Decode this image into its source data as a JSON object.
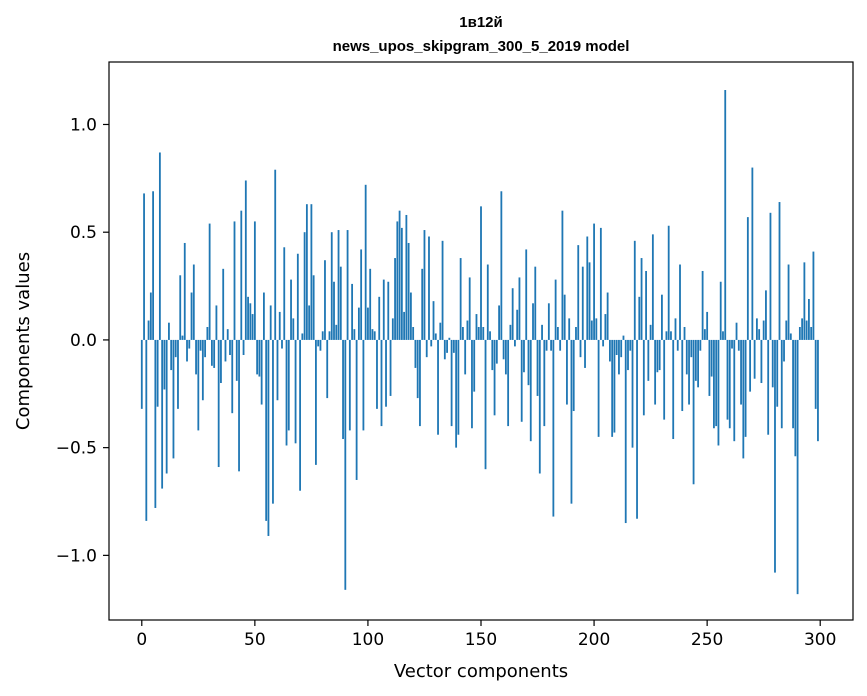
{
  "chart_data": {
    "type": "bar",
    "title": "1в12й",
    "subtitle": "news_upos_skipgram_300_5_2019 model",
    "xlabel": "Vector components",
    "ylabel": "Components values",
    "xlim": [
      -14.5,
      314.5
    ],
    "ylim": [
      -1.3,
      1.29
    ],
    "xticks": [
      0,
      50,
      100,
      150,
      200,
      250,
      300
    ],
    "yticks": [
      -1.0,
      -0.5,
      0.0,
      0.5,
      1.0
    ],
    "xtick_labels": [
      "0",
      "50",
      "100",
      "150",
      "200",
      "250",
      "300"
    ],
    "ytick_labels": [
      "−1.0",
      "−0.5",
      "0.0",
      "0.5",
      "1.0"
    ],
    "grid": false,
    "bar_color": "#1f77b4",
    "values": [
      -0.32,
      0.68,
      -0.84,
      0.09,
      0.22,
      0.69,
      -0.78,
      -0.31,
      0.87,
      -0.69,
      -0.23,
      -0.62,
      0.08,
      -0.14,
      -0.55,
      -0.08,
      -0.32,
      0.3,
      0.02,
      0.45,
      -0.1,
      -0.04,
      0.22,
      0.35,
      -0.16,
      -0.42,
      -0.05,
      -0.28,
      -0.08,
      0.06,
      0.54,
      -0.12,
      -0.13,
      0.16,
      -0.59,
      -0.2,
      0.33,
      -0.1,
      0.05,
      -0.07,
      -0.34,
      0.55,
      -0.19,
      -0.61,
      0.6,
      -0.07,
      0.74,
      0.2,
      0.17,
      0.12,
      0.55,
      -0.16,
      -0.17,
      -0.3,
      0.22,
      -0.84,
      -0.91,
      0.16,
      -0.76,
      0.79,
      -0.28,
      0.13,
      -0.04,
      0.43,
      -0.49,
      -0.42,
      0.28,
      0.1,
      -0.48,
      0.4,
      -0.7,
      0.03,
      0.5,
      0.63,
      0.16,
      0.63,
      0.3,
      -0.58,
      -0.03,
      -0.05,
      0.04,
      0.37,
      -0.27,
      0.04,
      0.5,
      0.27,
      0.07,
      0.51,
      0.34,
      -0.46,
      -1.16,
      0.51,
      -0.42,
      0.26,
      0.05,
      -0.65,
      0.15,
      0.42,
      -0.42,
      0.72,
      0.15,
      0.33,
      0.05,
      0.04,
      -0.32,
      0.2,
      -0.4,
      0.28,
      -0.31,
      0.27,
      -0.26,
      0.1,
      0.38,
      0.55,
      0.6,
      0.52,
      0.13,
      0.58,
      0.45,
      0.22,
      0.06,
      -0.13,
      -0.27,
      -0.4,
      0.33,
      0.51,
      -0.08,
      0.48,
      -0.03,
      0.18,
      0.03,
      -0.44,
      0.08,
      0.46,
      -0.09,
      -0.06,
      0.01,
      -0.4,
      -0.06,
      -0.5,
      -0.44,
      0.38,
      0.06,
      -0.16,
      0.09,
      0.29,
      -0.41,
      -0.24,
      0.12,
      0.06,
      0.62,
      0.06,
      -0.6,
      0.35,
      0.04,
      -0.14,
      -0.35,
      -0.11,
      0.16,
      0.69,
      -0.09,
      -0.16,
      -0.4,
      0.07,
      0.24,
      -0.03,
      0.14,
      0.29,
      -0.38,
      -0.15,
      0.42,
      -0.21,
      -0.47,
      0.17,
      0.34,
      -0.26,
      -0.62,
      0.07,
      -0.4,
      -0.05,
      0.17,
      -0.05,
      -0.82,
      0.28,
      0.06,
      -0.05,
      0.6,
      0.21,
      -0.3,
      0.1,
      -0.76,
      -0.33,
      0.06,
      0.44,
      -0.08,
      0.34,
      -0.13,
      0.48,
      0.36,
      0.09,
      0.54,
      0.1,
      -0.45,
      0.52,
      -0.03,
      0.12,
      0.22,
      -0.1,
      -0.45,
      -0.43,
      -0.07,
      -0.16,
      -0.08,
      0.02,
      -0.85,
      -0.14,
      -0.05,
      -0.5,
      0.46,
      -0.83,
      0.2,
      0.38,
      -0.35,
      0.32,
      -0.19,
      0.07,
      0.49,
      -0.3,
      -0.15,
      -0.14,
      0.21,
      -0.37,
      0.04,
      0.53,
      0.04,
      -0.46,
      0.1,
      -0.05,
      0.35,
      -0.33,
      0.06,
      -0.16,
      -0.3,
      -0.08,
      -0.67,
      -0.19,
      -0.22,
      -0.05,
      0.32,
      0.05,
      0.13,
      -0.26,
      -0.17,
      -0.41,
      -0.4,
      -0.49,
      0.27,
      0.04,
      1.16,
      -0.37,
      -0.41,
      -0.04,
      -0.47,
      0.08,
      -0.05,
      -0.3,
      -0.55,
      -0.45,
      0.57,
      -0.24,
      0.8,
      -0.18,
      0.1,
      0.05,
      -0.2,
      0.09,
      0.23,
      -0.44,
      0.59,
      -0.22,
      -1.08,
      -0.31,
      0.64,
      -0.41,
      -0.1,
      0.09,
      0.35,
      0.03,
      -0.41,
      -0.54,
      -1.18,
      0.06,
      0.1,
      0.36,
      0.09,
      0.19,
      0.06,
      0.41,
      -0.32,
      -0.47
    ]
  }
}
